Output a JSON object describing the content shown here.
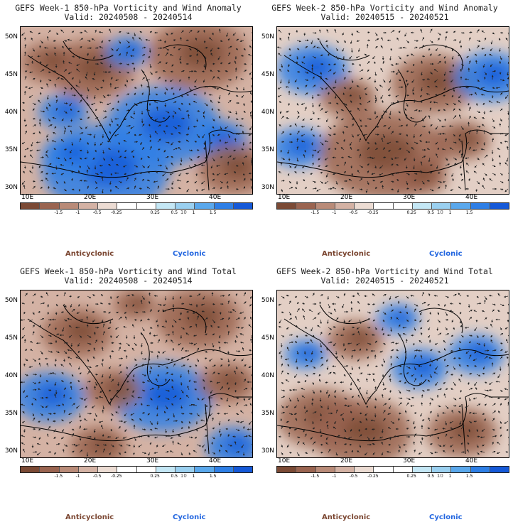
{
  "panels": [
    {
      "title_line1": "GEFS Week-1 850-hPa Vorticity and Wind Anomaly",
      "title_line2": "Valid: 20240508 - 20240514",
      "variant": 0
    },
    {
      "title_line1": "GEFS Week-2 850-hPa Vorticity and Wind Anomaly",
      "title_line2": "Valid: 20240515 - 20240521",
      "variant": 1
    },
    {
      "title_line1": "GEFS Week-1 850-hPa Vorticity and Wind Total",
      "title_line2": "Valid: 20240508 - 20240514",
      "variant": 2
    },
    {
      "title_line1": "GEFS Week-2 850-hPa Vorticity and Wind Total",
      "title_line2": "Valid: 20240515 - 20240521",
      "variant": 3
    }
  ],
  "axes": {
    "lat_labels": [
      "50N",
      "45N",
      "40N",
      "35N",
      "30N"
    ],
    "lon_labels": [
      "10E",
      "20E",
      "30E",
      "40E"
    ]
  },
  "colorbar": {
    "labels": [
      "-1.5",
      "-1",
      "-0.5",
      "-0.25",
      "0.25",
      "0.5",
      "1",
      "1.5"
    ],
    "scale_note": "10",
    "colors": [
      "#7b4a35",
      "#9a6450",
      "#b98b78",
      "#d4b2a4",
      "#ecdcd3",
      "#ffffff",
      "#ffffff",
      "#c4e7f5",
      "#9ad0f0",
      "#5aa8ec",
      "#2e7fe6",
      "#1559d8"
    ]
  },
  "legend": {
    "anticyclonic": "Anticyclonic",
    "cyclonic": "Cyclonic"
  }
}
